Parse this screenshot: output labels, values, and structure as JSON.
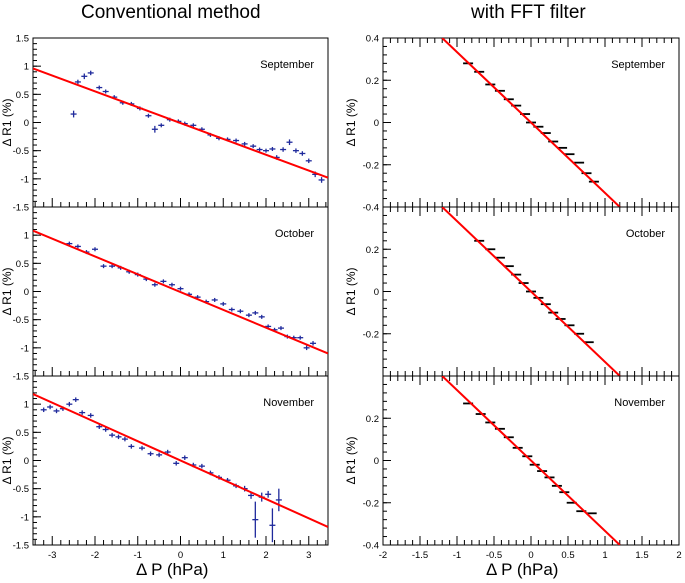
{
  "columns": {
    "left_title": "Conventional method",
    "right_title": "with FFT filter"
  },
  "xlabel": "Δ P (hPa)",
  "ylabel": "Δ R1 (%)",
  "colors": {
    "fit": "#ff0000",
    "left_points": "#1f2a9c",
    "right_points": "#000000"
  },
  "chart_data": [
    {
      "type": "scatter",
      "id": "left-september",
      "title": "September",
      "xlim": [
        -3.45,
        3.45
      ],
      "ylim": [
        -1.5,
        1.5
      ],
      "xticks": [
        -3,
        -2,
        -1,
        0,
        1,
        2,
        3
      ],
      "yticks": [
        -1.5,
        -1,
        -0.5,
        0,
        0.5,
        1,
        1.5
      ],
      "yticklabels": [
        "-1.5",
        "-1",
        "-0.5",
        "0",
        "0.5",
        "1",
        "1.5"
      ],
      "fit": {
        "x1": -3.45,
        "y1": 0.96,
        "x2": 3.45,
        "y2": -0.98
      },
      "points": [
        {
          "x": -2.5,
          "y": 0.15,
          "e": 0.06
        },
        {
          "x": -2.4,
          "y": 0.72,
          "e": 0.04
        },
        {
          "x": -2.25,
          "y": 0.82,
          "e": 0.05
        },
        {
          "x": -2.1,
          "y": 0.88,
          "e": 0.04
        },
        {
          "x": -1.9,
          "y": 0.62,
          "e": 0.03
        },
        {
          "x": -1.75,
          "y": 0.55,
          "e": 0.03
        },
        {
          "x": -1.55,
          "y": 0.45,
          "e": 0.03
        },
        {
          "x": -1.35,
          "y": 0.35,
          "e": 0.03
        },
        {
          "x": -1.15,
          "y": 0.33,
          "e": 0.03
        },
        {
          "x": -0.95,
          "y": 0.25,
          "e": 0.03
        },
        {
          "x": -0.75,
          "y": 0.12,
          "e": 0.03
        },
        {
          "x": -0.6,
          "y": -0.12,
          "e": 0.06
        },
        {
          "x": -0.45,
          "y": -0.05,
          "e": 0.03
        },
        {
          "x": -0.25,
          "y": 0.05,
          "e": 0.03
        },
        {
          "x": -0.05,
          "y": 0.02,
          "e": 0.03
        },
        {
          "x": 0.1,
          "y": -0.02,
          "e": 0.03
        },
        {
          "x": 0.3,
          "y": -0.05,
          "e": 0.03
        },
        {
          "x": 0.5,
          "y": -0.12,
          "e": 0.03
        },
        {
          "x": 0.7,
          "y": -0.22,
          "e": 0.03
        },
        {
          "x": 0.9,
          "y": -0.28,
          "e": 0.03
        },
        {
          "x": 1.1,
          "y": -0.3,
          "e": 0.03
        },
        {
          "x": 1.3,
          "y": -0.32,
          "e": 0.03
        },
        {
          "x": 1.5,
          "y": -0.38,
          "e": 0.03
        },
        {
          "x": 1.7,
          "y": -0.42,
          "e": 0.03
        },
        {
          "x": 1.85,
          "y": -0.48,
          "e": 0.03
        },
        {
          "x": 2.0,
          "y": -0.5,
          "e": 0.03
        },
        {
          "x": 2.15,
          "y": -0.47,
          "e": 0.03
        },
        {
          "x": 2.25,
          "y": -0.62,
          "e": 0.04
        },
        {
          "x": 2.4,
          "y": -0.48,
          "e": 0.04
        },
        {
          "x": 2.55,
          "y": -0.35,
          "e": 0.05
        },
        {
          "x": 2.7,
          "y": -0.5,
          "e": 0.04
        },
        {
          "x": 2.85,
          "y": -0.55,
          "e": 0.04
        },
        {
          "x": 3.0,
          "y": -0.68,
          "e": 0.04
        },
        {
          "x": 3.15,
          "y": -0.92,
          "e": 0.05
        },
        {
          "x": 3.3,
          "y": -1.02,
          "e": 0.05
        }
      ]
    },
    {
      "type": "scatter",
      "id": "left-october",
      "title": "October",
      "xlim": [
        -3.45,
        3.45
      ],
      "ylim": [
        -1.5,
        1.5
      ],
      "xticks": [
        -3,
        -2,
        -1,
        0,
        1,
        2,
        3
      ],
      "yticks": [
        -1.5,
        -1,
        -0.5,
        0,
        0.5,
        1,
        1.5
      ],
      "yticklabels": [
        "-1.5",
        "-1",
        "-0.5",
        "0",
        "0.5",
        "1",
        ""
      ],
      "fit": {
        "x1": -3.45,
        "y1": 1.08,
        "x2": 3.45,
        "y2": -1.1
      },
      "points": [
        {
          "x": -2.6,
          "y": 0.85,
          "e": 0.03
        },
        {
          "x": -2.4,
          "y": 0.8,
          "e": 0.03
        },
        {
          "x": -2.2,
          "y": 0.7,
          "e": 0.03
        },
        {
          "x": -2.0,
          "y": 0.75,
          "e": 0.03
        },
        {
          "x": -1.8,
          "y": 0.45,
          "e": 0.03
        },
        {
          "x": -1.6,
          "y": 0.45,
          "e": 0.03
        },
        {
          "x": -1.4,
          "y": 0.42,
          "e": 0.03
        },
        {
          "x": -1.2,
          "y": 0.35,
          "e": 0.03
        },
        {
          "x": -1.0,
          "y": 0.3,
          "e": 0.03
        },
        {
          "x": -0.8,
          "y": 0.22,
          "e": 0.03
        },
        {
          "x": -0.6,
          "y": 0.12,
          "e": 0.03
        },
        {
          "x": -0.4,
          "y": 0.18,
          "e": 0.03
        },
        {
          "x": -0.2,
          "y": 0.12,
          "e": 0.03
        },
        {
          "x": 0.0,
          "y": 0.05,
          "e": 0.03
        },
        {
          "x": 0.2,
          "y": -0.05,
          "e": 0.03
        },
        {
          "x": 0.4,
          "y": -0.1,
          "e": 0.03
        },
        {
          "x": 0.6,
          "y": -0.18,
          "e": 0.03
        },
        {
          "x": 0.8,
          "y": -0.15,
          "e": 0.03
        },
        {
          "x": 1.0,
          "y": -0.22,
          "e": 0.03
        },
        {
          "x": 1.2,
          "y": -0.32,
          "e": 0.03
        },
        {
          "x": 1.4,
          "y": -0.35,
          "e": 0.03
        },
        {
          "x": 1.6,
          "y": -0.42,
          "e": 0.03
        },
        {
          "x": 1.75,
          "y": -0.38,
          "e": 0.03
        },
        {
          "x": 1.9,
          "y": -0.45,
          "e": 0.03
        },
        {
          "x": 2.05,
          "y": -0.62,
          "e": 0.03
        },
        {
          "x": 2.2,
          "y": -0.68,
          "e": 0.03
        },
        {
          "x": 2.35,
          "y": -0.65,
          "e": 0.03
        },
        {
          "x": 2.5,
          "y": -0.8,
          "e": 0.03
        },
        {
          "x": 2.65,
          "y": -0.82,
          "e": 0.03
        },
        {
          "x": 2.8,
          "y": -0.82,
          "e": 0.03
        },
        {
          "x": 2.95,
          "y": -1.0,
          "e": 0.04
        },
        {
          "x": 3.1,
          "y": -0.92,
          "e": 0.04
        }
      ]
    },
    {
      "type": "scatter",
      "id": "left-november",
      "title": "November",
      "xlim": [
        -3.45,
        3.45
      ],
      "ylim": [
        -1.5,
        1.5
      ],
      "xticks": [
        -3,
        -2,
        -1,
        0,
        1,
        2,
        3
      ],
      "yticks": [
        -1.5,
        -1,
        -0.5,
        0,
        0.5,
        1,
        1.5
      ],
      "yticklabels": [
        "-1.5",
        "-1",
        "-0.5",
        "0",
        "0.5",
        "1",
        ""
      ],
      "xticklabels": [
        "-3",
        "-2",
        "-1",
        "0",
        "1",
        "2",
        "3"
      ],
      "fit": {
        "x1": -3.45,
        "y1": 1.18,
        "x2": 3.45,
        "y2": -1.18
      },
      "points": [
        {
          "x": -3.2,
          "y": 0.9,
          "e": 0.04
        },
        {
          "x": -3.05,
          "y": 0.95,
          "e": 0.04
        },
        {
          "x": -2.9,
          "y": 0.88,
          "e": 0.04
        },
        {
          "x": -2.75,
          "y": 0.92,
          "e": 0.04
        },
        {
          "x": -2.6,
          "y": 1.0,
          "e": 0.04
        },
        {
          "x": -2.45,
          "y": 1.08,
          "e": 0.04
        },
        {
          "x": -2.3,
          "y": 0.85,
          "e": 0.04
        },
        {
          "x": -2.1,
          "y": 0.8,
          "e": 0.04
        },
        {
          "x": -1.9,
          "y": 0.6,
          "e": 0.04
        },
        {
          "x": -1.75,
          "y": 0.55,
          "e": 0.04
        },
        {
          "x": -1.6,
          "y": 0.45,
          "e": 0.04
        },
        {
          "x": -1.45,
          "y": 0.42,
          "e": 0.04
        },
        {
          "x": -1.3,
          "y": 0.38,
          "e": 0.04
        },
        {
          "x": -1.15,
          "y": 0.25,
          "e": 0.04
        },
        {
          "x": -0.9,
          "y": 0.22,
          "e": 0.04
        },
        {
          "x": -0.7,
          "y": 0.12,
          "e": 0.04
        },
        {
          "x": -0.5,
          "y": 0.1,
          "e": 0.04
        },
        {
          "x": -0.3,
          "y": 0.15,
          "e": 0.04
        },
        {
          "x": -0.1,
          "y": -0.05,
          "e": 0.04
        },
        {
          "x": 0.1,
          "y": 0.05,
          "e": 0.04
        },
        {
          "x": 0.3,
          "y": -0.08,
          "e": 0.04
        },
        {
          "x": 0.5,
          "y": -0.1,
          "e": 0.04
        },
        {
          "x": 0.7,
          "y": -0.22,
          "e": 0.04
        },
        {
          "x": 0.9,
          "y": -0.3,
          "e": 0.04
        },
        {
          "x": 1.1,
          "y": -0.35,
          "e": 0.04
        },
        {
          "x": 1.3,
          "y": -0.45,
          "e": 0.04
        },
        {
          "x": 1.5,
          "y": -0.5,
          "e": 0.05
        },
        {
          "x": 1.65,
          "y": -0.62,
          "e": 0.06
        },
        {
          "x": 1.75,
          "y": -1.05,
          "e": 0.32
        },
        {
          "x": 1.9,
          "y": -0.65,
          "e": 0.08
        },
        {
          "x": 2.05,
          "y": -0.6,
          "e": 0.06
        },
        {
          "x": 2.15,
          "y": -1.15,
          "e": 0.3
        },
        {
          "x": 2.3,
          "y": -0.7,
          "e": 0.2
        }
      ]
    },
    {
      "type": "scatter",
      "id": "right-september",
      "title": "September",
      "xlim": [
        -2,
        2
      ],
      "ylim": [
        -0.4,
        0.4
      ],
      "xticks": [
        -2,
        -1.5,
        -1,
        -0.5,
        0,
        0.5,
        1,
        1.5,
        2
      ],
      "yticks": [
        -0.4,
        -0.2,
        0,
        0.2,
        0.4
      ],
      "yticklabels": [
        "-0.4",
        "-0.2",
        "0",
        "0.2",
        "0.4"
      ],
      "fit": {
        "x1": -1.2,
        "y1": 0.4,
        "x2": 1.2,
        "y2": -0.4
      },
      "points": [
        {
          "x": -0.85,
          "y": 0.28
        },
        {
          "x": -0.7,
          "y": 0.24
        },
        {
          "x": -0.55,
          "y": 0.18
        },
        {
          "x": -0.42,
          "y": 0.15
        },
        {
          "x": -0.3,
          "y": 0.11
        },
        {
          "x": -0.2,
          "y": 0.08
        },
        {
          "x": -0.08,
          "y": 0.04
        },
        {
          "x": 0.0,
          "y": 0.0
        },
        {
          "x": 0.1,
          "y": -0.02
        },
        {
          "x": 0.2,
          "y": -0.05
        },
        {
          "x": 0.3,
          "y": -0.09
        },
        {
          "x": 0.42,
          "y": -0.12
        },
        {
          "x": 0.52,
          "y": -0.15
        },
        {
          "x": 0.65,
          "y": -0.19
        },
        {
          "x": 0.75,
          "y": -0.24
        },
        {
          "x": 0.85,
          "y": -0.28
        }
      ]
    },
    {
      "type": "scatter",
      "id": "right-october",
      "title": "October",
      "xlim": [
        -2,
        2
      ],
      "ylim": [
        -0.4,
        0.4
      ],
      "xticks": [
        -2,
        -1.5,
        -1,
        -0.5,
        0,
        0.5,
        1,
        1.5,
        2
      ],
      "yticks": [
        -0.4,
        -0.2,
        0,
        0.2,
        0.4
      ],
      "yticklabels": [
        "",
        "-0.2",
        "0",
        "0.2",
        ""
      ],
      "fit": {
        "x1": -1.2,
        "y1": 0.4,
        "x2": 1.2,
        "y2": -0.4
      },
      "points": [
        {
          "x": -0.7,
          "y": 0.24
        },
        {
          "x": -0.55,
          "y": 0.2
        },
        {
          "x": -0.42,
          "y": 0.16
        },
        {
          "x": -0.3,
          "y": 0.12
        },
        {
          "x": -0.2,
          "y": 0.08
        },
        {
          "x": -0.1,
          "y": 0.04
        },
        {
          "x": 0.0,
          "y": 0.0
        },
        {
          "x": 0.1,
          "y": -0.03
        },
        {
          "x": 0.2,
          "y": -0.06
        },
        {
          "x": 0.3,
          "y": -0.1
        },
        {
          "x": 0.4,
          "y": -0.13
        },
        {
          "x": 0.52,
          "y": -0.16
        },
        {
          "x": 0.65,
          "y": -0.2
        },
        {
          "x": 0.78,
          "y": -0.24
        }
      ]
    },
    {
      "type": "scatter",
      "id": "right-november",
      "title": "November",
      "xlim": [
        -2,
        2
      ],
      "ylim": [
        -0.4,
        0.4
      ],
      "xticks": [
        -2,
        -1.5,
        -1,
        -0.5,
        0,
        0.5,
        1,
        1.5,
        2
      ],
      "yticks": [
        -0.4,
        -0.2,
        0,
        0.2,
        0.4
      ],
      "yticklabels": [
        "-0.4",
        "-0.2",
        "0",
        "0.2",
        ""
      ],
      "xticklabels": [
        "-2",
        "-1.5",
        "-1",
        "-0.5",
        "0",
        "0.5",
        "1",
        "1.5",
        "2"
      ],
      "fit": {
        "x1": -1.2,
        "y1": 0.4,
        "x2": 1.2,
        "y2": -0.4
      },
      "points": [
        {
          "x": -0.85,
          "y": 0.27
        },
        {
          "x": -0.68,
          "y": 0.22
        },
        {
          "x": -0.55,
          "y": 0.18
        },
        {
          "x": -0.42,
          "y": 0.15
        },
        {
          "x": -0.3,
          "y": 0.11
        },
        {
          "x": -0.18,
          "y": 0.06
        },
        {
          "x": -0.05,
          "y": 0.02
        },
        {
          "x": 0.05,
          "y": -0.02
        },
        {
          "x": 0.15,
          "y": -0.05
        },
        {
          "x": 0.25,
          "y": -0.08
        },
        {
          "x": 0.35,
          "y": -0.12
        },
        {
          "x": 0.45,
          "y": -0.15
        },
        {
          "x": 0.55,
          "y": -0.2
        },
        {
          "x": 0.68,
          "y": -0.24
        },
        {
          "x": 0.82,
          "y": -0.25
        }
      ]
    }
  ]
}
